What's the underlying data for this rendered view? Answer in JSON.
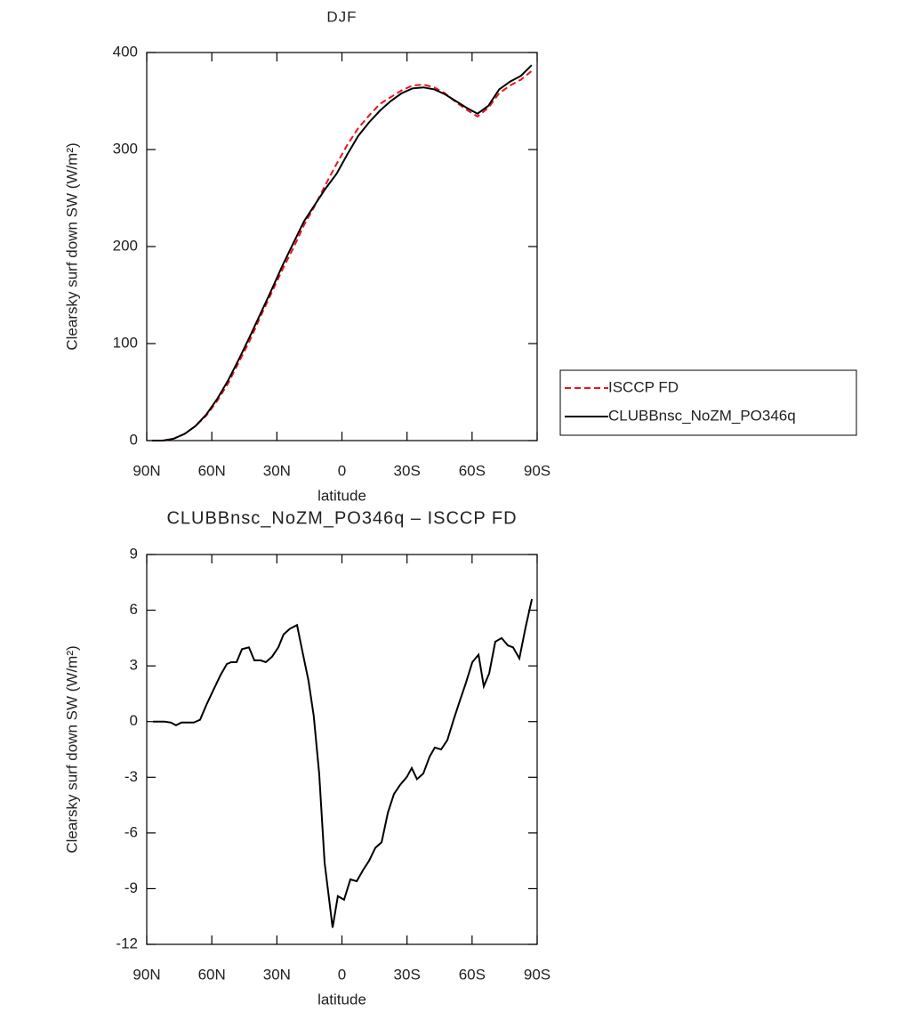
{
  "chart_data": [
    {
      "type": "line",
      "title": "DJF",
      "xlabel": "latitude",
      "ylabel": "Clearsky surf down SW (W/m²)",
      "x": [
        87.5,
        82.5,
        77.5,
        72.5,
        67.5,
        62.5,
        57.5,
        52.5,
        47.5,
        42.5,
        37.5,
        32.5,
        27.5,
        22.5,
        17.5,
        12.5,
        7.5,
        2.5,
        -2.5,
        -7.5,
        -12.5,
        -17.5,
        -22.5,
        -27.5,
        -32.5,
        -37.5,
        -42.5,
        -47.5,
        -52.5,
        -57.5,
        -62.5,
        -67.5,
        -72.5,
        -77.5,
        -82.5,
        -87.5
      ],
      "series": [
        {
          "name": "ISCCP FD",
          "color": "#e8141a",
          "dashed": true,
          "values": [
            0,
            0,
            2,
            7,
            15,
            26,
            41,
            59,
            81,
            103,
            128,
            152,
            176,
            198,
            222,
            242,
            264,
            285,
            305,
            322,
            335,
            347,
            354,
            361,
            366,
            367,
            364,
            358,
            349,
            341,
            334,
            343,
            358,
            366,
            372,
            381
          ]
        },
        {
          "name": "CLUBBnsc_NoZM_PO346q",
          "color": "#000000",
          "dashed": false,
          "values": [
            0,
            0,
            2,
            7,
            15,
            27,
            43,
            62,
            84,
            107,
            131,
            155,
            180,
            203,
            226,
            243,
            260,
            275,
            295,
            314,
            328,
            340,
            350,
            358,
            363,
            364,
            362,
            357,
            350,
            343,
            337,
            345,
            362,
            370,
            376,
            387
          ]
        }
      ],
      "xlim": [
        90,
        -90
      ],
      "xticks": [
        {
          "value": 90,
          "label": "90N"
        },
        {
          "value": 60,
          "label": "60N"
        },
        {
          "value": 30,
          "label": "30N"
        },
        0,
        {
          "value": -30,
          "label": "30S"
        },
        {
          "value": -60,
          "label": "60S"
        },
        {
          "value": -90,
          "label": "90S"
        }
      ],
      "ylim": [
        0,
        400
      ],
      "yticks": [
        0,
        100,
        200,
        300,
        400
      ]
    },
    {
      "type": "line",
      "title": "CLUBBnsc_NoZM_PO346q – ISCCP FD",
      "xlabel": "latitude",
      "ylabel": "Clearsky surf down SW (W/m²)",
      "x": [
        87.1,
        81.8,
        78.9,
        76.5,
        74.0,
        71.5,
        68.3,
        65.4,
        62.5,
        59.3,
        56.0,
        53.1,
        51.1,
        48.6,
        46.1,
        42.9,
        40.4,
        37.5,
        35.1,
        32.2,
        29.3,
        26.9,
        24.0,
        20.7,
        17.9,
        15.4,
        13.0,
        10.5,
        8.0,
        4.3,
        1.9,
        -1.0,
        -3.9,
        -6.8,
        -9.7,
        -12.5,
        -15.4,
        -18.3,
        -21.2,
        -24.0,
        -26.9,
        -29.8,
        -32.2,
        -34.6,
        -37.5,
        -40.4,
        -42.8,
        -45.7,
        -48.6,
        -51.5,
        -54.3,
        -57.2,
        -60.1,
        -63.0,
        -65.4,
        -67.9,
        -70.7,
        -73.6,
        -76.5,
        -78.9,
        -81.8,
        -84.7,
        -87.6
      ],
      "color": "#000000",
      "values": [
        0,
        0,
        -0.05,
        -0.2,
        -0.05,
        -0.05,
        -0.05,
        0.1,
        0.9,
        1.7,
        2.5,
        3.1,
        3.2,
        3.2,
        3.9,
        4.0,
        3.3,
        3.3,
        3.2,
        3.5,
        4.0,
        4.7,
        5.0,
        5.2,
        3.6,
        2.2,
        0.3,
        -2.8,
        -7.6,
        -11.1,
        -9.4,
        -9.6,
        -8.5,
        -8.6,
        -8.0,
        -7.5,
        -6.8,
        -6.5,
        -4.9,
        -3.9,
        -3.4,
        -3.0,
        -2.5,
        -3.1,
        -2.8,
        -1.9,
        -1.4,
        -1.5,
        -1.0,
        0.1,
        1.1,
        2.1,
        3.2,
        3.6,
        1.9,
        2.6,
        4.3,
        4.5,
        4.1,
        4.0,
        3.4,
        5.1,
        6.6
      ],
      "xlim": [
        90,
        -90
      ],
      "xticks": [
        {
          "value": 90,
          "label": "90N"
        },
        {
          "value": 60,
          "label": "60N"
        },
        {
          "value": 30,
          "label": "30N"
        },
        0,
        {
          "value": -30,
          "label": "30S"
        },
        {
          "value": -60,
          "label": "60S"
        },
        {
          "value": -90,
          "label": "90S"
        }
      ],
      "ylim": [
        -12,
        9
      ],
      "yticks": [
        -12,
        -9,
        -6,
        -3,
        0,
        3,
        6,
        9
      ]
    }
  ]
}
